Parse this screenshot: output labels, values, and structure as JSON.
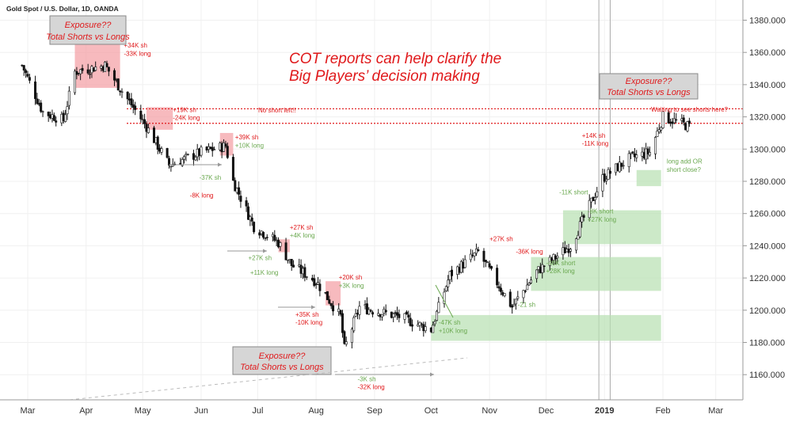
{
  "header": {
    "symbol_title": "Gold Spot / U.S. Dollar, 1D, OANDA"
  },
  "headline": {
    "line1": "COT reports can help clarify the",
    "line2": "Big Players’ decision making"
  },
  "exposure_boxes": [
    {
      "line1": "Exposure??",
      "line2": "Total Shorts vs Longs"
    },
    {
      "line1": "Exposure??",
      "line2": "Total Shorts vs Longs"
    },
    {
      "line1": "Exposure??",
      "line2": "Total Shorts vs Longs"
    }
  ],
  "notes": {
    "no_short_left": "No short left!!",
    "waiting": "Waiting to see shorts here?"
  },
  "colors": {
    "bullish": "#6aa84f",
    "bearish": "#e0191b",
    "candle": "#111111",
    "red_zone": "#f4a3a8",
    "green_zone": "#b7dfb0",
    "grid": "#f0f0f0"
  },
  "chart_data": {
    "type": "candlestick",
    "title": "Gold Spot / U.S. Dollar, 1D, OANDA",
    "ylim": [
      1140,
      1390
    ],
    "y_ticks": [
      "1160.000",
      "1180.000",
      "1200.000",
      "1220.000",
      "1240.000",
      "1260.000",
      "1280.000",
      "1300.000",
      "1320.000",
      "1340.000",
      "1360.000",
      "1380.000"
    ],
    "x_ticks": [
      "Mar",
      "Apr",
      "May",
      "Jun",
      "Jul",
      "Aug",
      "Sep",
      "Oct",
      "Nov",
      "Dec",
      "2019",
      "Feb",
      "Mar"
    ],
    "close_path": [
      {
        "date": "2018-02-26",
        "v": 1352
      },
      {
        "date": "2018-03-09",
        "v": 1323
      },
      {
        "date": "2018-03-20",
        "v": 1318
      },
      {
        "date": "2018-03-26",
        "v": 1348
      },
      {
        "date": "2018-04-11",
        "v": 1352
      },
      {
        "date": "2018-04-20",
        "v": 1336
      },
      {
        "date": "2018-05-03",
        "v": 1314
      },
      {
        "date": "2018-05-15",
        "v": 1290
      },
      {
        "date": "2018-06-01",
        "v": 1298
      },
      {
        "date": "2018-06-14",
        "v": 1302
      },
      {
        "date": "2018-06-18",
        "v": 1280
      },
      {
        "date": "2018-06-29",
        "v": 1252
      },
      {
        "date": "2018-07-12",
        "v": 1242
      },
      {
        "date": "2018-07-19",
        "v": 1228
      },
      {
        "date": "2018-08-01",
        "v": 1218
      },
      {
        "date": "2018-08-14",
        "v": 1196
      },
      {
        "date": "2018-08-16",
        "v": 1176
      },
      {
        "date": "2018-08-24",
        "v": 1202
      },
      {
        "date": "2018-09-14",
        "v": 1196
      },
      {
        "date": "2018-10-01",
        "v": 1188
      },
      {
        "date": "2018-10-11",
        "v": 1222
      },
      {
        "date": "2018-10-26",
        "v": 1236
      },
      {
        "date": "2018-11-13",
        "v": 1202
      },
      {
        "date": "2018-11-26",
        "v": 1224
      },
      {
        "date": "2018-12-14",
        "v": 1240
      },
      {
        "date": "2018-12-31",
        "v": 1282
      },
      {
        "date": "2019-01-14",
        "v": 1294
      },
      {
        "date": "2019-01-25",
        "v": 1298
      },
      {
        "date": "2019-02-01",
        "v": 1320
      },
      {
        "date": "2019-02-15",
        "v": 1314
      }
    ],
    "lines": [
      {
        "label": "resistance",
        "y": 1325,
        "style": "dotted",
        "color": "#e0191b"
      },
      {
        "label": "resistance",
        "y": 1316,
        "style": "dotted",
        "color": "#e0191b"
      }
    ],
    "zones": [
      {
        "color": "red",
        "from": "2018-03-26",
        "to": "2018-04-19",
        "y0": 1338,
        "y1": 1365
      },
      {
        "color": "red",
        "from": "2018-05-03",
        "to": "2018-05-17",
        "y0": 1312,
        "y1": 1326
      },
      {
        "color": "red",
        "from": "2018-06-11",
        "to": "2018-06-18",
        "y0": 1296,
        "y1": 1310
      },
      {
        "color": "red",
        "from": "2018-07-12",
        "to": "2018-07-18",
        "y0": 1236,
        "y1": 1244
      },
      {
        "color": "red",
        "from": "2018-08-06",
        "to": "2018-08-14",
        "y0": 1203,
        "y1": 1218
      },
      {
        "color": "green",
        "from": "2018-10-01",
        "to": "2019-01-31",
        "y0": 1181,
        "y1": 1197
      },
      {
        "color": "green",
        "from": "2018-11-23",
        "to": "2019-01-31",
        "y0": 1212,
        "y1": 1233
      },
      {
        "color": "green",
        "from": "2018-12-10",
        "to": "2019-01-31",
        "y0": 1241,
        "y1": 1262
      },
      {
        "color": "green",
        "from": "2019-01-18",
        "to": "2019-01-31",
        "y0": 1277,
        "y1": 1287
      }
    ],
    "annotations": [
      {
        "text": "+34K sh",
        "color": "red",
        "date": "2018-04-21",
        "y": 1363
      },
      {
        "text": "-33K long",
        "color": "red",
        "date": "2018-04-21",
        "y": 1358
      },
      {
        "text": "+19K sh",
        "color": "red",
        "date": "2018-05-17",
        "y": 1323
      },
      {
        "text": "-24K long",
        "color": "red",
        "date": "2018-05-17",
        "y": 1318
      },
      {
        "text": "+39K sh",
        "color": "red",
        "date": "2018-06-19",
        "y": 1306
      },
      {
        "text": "+10K long",
        "color": "green",
        "date": "2018-06-19",
        "y": 1301
      },
      {
        "text": "-37K sh",
        "color": "green",
        "date": "2018-05-31",
        "y": 1281
      },
      {
        "text": "-8K long",
        "color": "red",
        "date": "2018-05-26",
        "y": 1270
      },
      {
        "text": "+27K sh",
        "color": "red",
        "date": "2018-07-18",
        "y": 1250
      },
      {
        "text": "+4K long",
        "color": "green",
        "date": "2018-07-18",
        "y": 1245
      },
      {
        "text": "+27K sh",
        "color": "green",
        "date": "2018-06-26",
        "y": 1231
      },
      {
        "text": "+11K long",
        "color": "green",
        "date": "2018-06-27",
        "y": 1222
      },
      {
        "text": "+20K sh",
        "color": "red",
        "date": "2018-08-13",
        "y": 1219
      },
      {
        "text": "+3K long",
        "color": "green",
        "date": "2018-08-13",
        "y": 1214
      },
      {
        "text": "+35K sh",
        "color": "red",
        "date": "2018-07-21",
        "y": 1196
      },
      {
        "text": "-10K long",
        "color": "red",
        "date": "2018-07-21",
        "y": 1191
      },
      {
        "text": "-3K sh",
        "color": "green",
        "date": "2018-08-23",
        "y": 1156
      },
      {
        "text": "-32K long",
        "color": "red",
        "date": "2018-08-23",
        "y": 1151
      },
      {
        "text": "-47K sh",
        "color": "green",
        "date": "2018-10-05",
        "y": 1191
      },
      {
        "text": "+10K long",
        "color": "green",
        "date": "2018-10-05",
        "y": 1186
      },
      {
        "text": "-21 sh",
        "color": "green",
        "date": "2018-11-16",
        "y": 1202
      },
      {
        "text": "+27K sh",
        "color": "red",
        "date": "2018-11-01",
        "y": 1243
      },
      {
        "text": "-36K long",
        "color": "red",
        "date": "2018-11-15",
        "y": 1235
      },
      {
        "text": "-46K short",
        "color": "green",
        "date": "2018-12-01",
        "y": 1228
      },
      {
        "text": "+28K long",
        "color": "green",
        "date": "2018-12-01",
        "y": 1223
      },
      {
        "text": "-11K short",
        "color": "green",
        "date": "2018-12-08",
        "y": 1272
      },
      {
        "text": "-8K short",
        "color": "green",
        "date": "2018-12-23",
        "y": 1260
      },
      {
        "text": "+27K long",
        "color": "green",
        "date": "2018-12-23",
        "y": 1255
      },
      {
        "text": "+14K sh",
        "color": "red",
        "date": "2018-12-20",
        "y": 1307
      },
      {
        "text": "-11K long",
        "color": "red",
        "date": "2018-12-20",
        "y": 1302
      },
      {
        "text": "long add OR",
        "color": "green",
        "date": "2019-02-03",
        "y": 1291
      },
      {
        "text": "short close?",
        "color": "green",
        "date": "2019-02-03",
        "y": 1286
      }
    ]
  }
}
